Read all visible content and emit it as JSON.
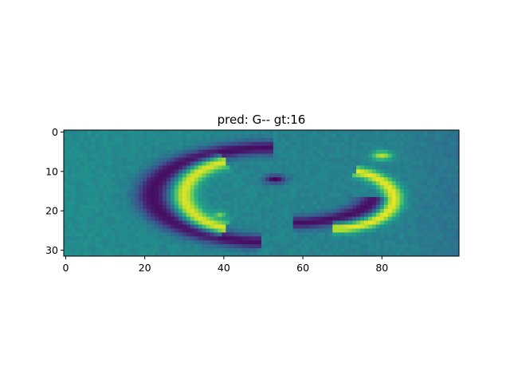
{
  "chart_data": {
    "type": "heatmap",
    "title": "pred: G-- gt:16",
    "xlabel": "",
    "ylabel": "",
    "colormap": "viridis",
    "value_range": [
      0,
      1
    ],
    "image_shape": {
      "rows": 32,
      "cols": 100
    },
    "xlim": [
      -0.5,
      99.5
    ],
    "ylim": [
      31.5,
      -0.5
    ],
    "y_inverted": true,
    "x_ticks": [
      0,
      20,
      40,
      60,
      80
    ],
    "y_ticks": [
      0,
      10,
      20,
      30
    ],
    "x_tick_labels": [
      "0",
      "20",
      "40",
      "60",
      "80"
    ],
    "y_tick_labels": [
      "0",
      "10",
      "20",
      "30"
    ],
    "background_level": 0.42,
    "features": [
      {
        "name": "dark-left-arc",
        "kind": "ellipse-arc",
        "cx": 52,
        "cy": 16,
        "rx": 30,
        "ry": 12,
        "from_deg": 95,
        "to_deg": 270,
        "thickness": 2.3,
        "level": 0.05
      },
      {
        "name": "bright-left-arc",
        "kind": "ellipse-arc",
        "cx": 46,
        "cy": 16,
        "rx": 16,
        "ry": 9,
        "from_deg": 110,
        "to_deg": 250,
        "thickness": 2.0,
        "level": 0.95
      },
      {
        "name": "dark-bottom-arc",
        "kind": "ellipse-arc",
        "cx": 58,
        "cy": 15,
        "rx": 21,
        "ry": 8,
        "from_deg": 10,
        "to_deg": 90,
        "thickness": 2.0,
        "level": 0.05
      },
      {
        "name": "bright-right-arc",
        "kind": "ellipse-arc",
        "cx": 68,
        "cy": 17,
        "rx": 15,
        "ry": 7.5,
        "from_deg": 290,
        "to_deg": 450,
        "thickness": 1.6,
        "level": 0.97
      },
      {
        "name": "dark-center-spot",
        "kind": "blob",
        "cx": 53,
        "cy": 12,
        "rx": 3,
        "ry": 1.2,
        "level": 0.0
      },
      {
        "name": "bright-top-right-spot",
        "kind": "blob",
        "cx": 80,
        "cy": 6,
        "rx": 3,
        "ry": 1.3,
        "level": 0.9
      },
      {
        "name": "bright-left-dot",
        "kind": "blob",
        "cx": 39,
        "cy": 21,
        "rx": 1.6,
        "ry": 1.0,
        "level": 0.8
      }
    ]
  }
}
